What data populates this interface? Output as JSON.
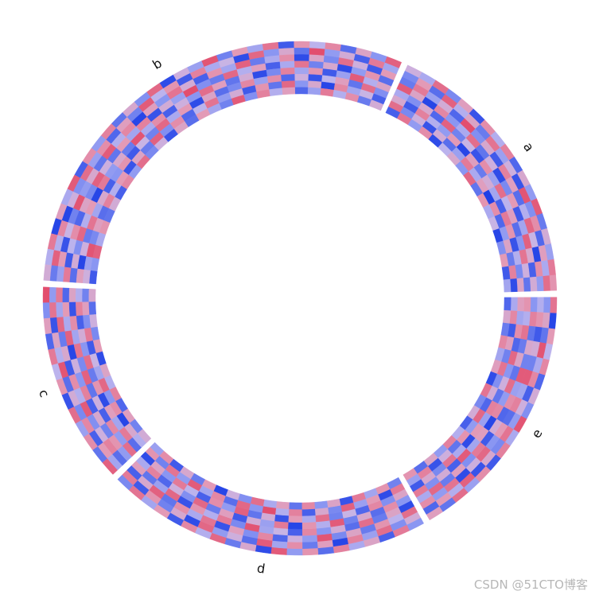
{
  "chart_data": {
    "type": "heatmap",
    "layout": "circular",
    "color_scale": [
      {
        "value": -2,
        "color": "#1f3fe6"
      },
      {
        "value": -0.7,
        "color": "#8a96f2"
      },
      {
        "value": 0,
        "color": "#c4b8ec"
      },
      {
        "value": 0.7,
        "color": "#e39ab6"
      },
      {
        "value": 2,
        "color": "#e24868"
      }
    ],
    "sectors": [
      {
        "name": "a",
        "values": [
          [
            0.8,
            1.4,
            -0.6,
            0.3,
            -1.2,
            0.5,
            -1.8,
            -0.4
          ],
          [
            1.2,
            -0.3,
            0.9,
            -1.5,
            0.2,
            -0.9,
            1.1,
            -1.6
          ],
          [
            -0.5,
            0.6,
            -1.9,
            0.4,
            1.3,
            -0.2,
            -1.1,
            0.7
          ],
          [
            0.3,
            -1.4,
            0.1,
            1.6,
            -0.7,
            -1.7,
            0.5,
            -0.8
          ],
          [
            -1.1,
            0.9,
            1.5,
            -0.4,
            -1.3,
            0.8,
            -0.6,
            -1.9
          ],
          [
            1.7,
            -0.8,
            -0.2,
            -1.6,
            0.6,
            1.2,
            -1.4,
            0.1
          ],
          [
            -0.6,
            1.8,
            -1.3,
            0.7,
            -0.1,
            -1.5,
            0.9,
            -0.3
          ],
          [
            0.4,
            -1.7,
            0.6,
            -0.9,
            1.4,
            -0.4,
            -2.0,
            0.8
          ],
          [
            -1.4,
            0.2,
            1.1,
            -1.8,
            -0.5,
            0.3,
            0.6,
            -1.2
          ],
          [
            1.1,
            -0.5,
            -1.6,
            0.2,
            0.9,
            -1.1,
            -0.3,
            1.5
          ],
          [
            -0.2,
            1.3,
            0.4,
            -1.2,
            -1.7,
            0.6,
            1.2,
            -0.7
          ],
          [
            0.9,
            -1.1,
            -0.8,
            1.4,
            0.1,
            -1.9,
            -0.5,
            0.4
          ],
          [
            -1.7,
            0.5,
            1.9,
            -0.3,
            -1.0,
            0.7,
            -1.3,
            -0.1
          ],
          [
            0.6,
            -0.2,
            -1.4,
            -0.7,
            1.6,
            -0.6,
            0.3,
            -1.8
          ],
          [
            -0.9,
            1.6,
            0.3,
            1.0,
            -1.4,
            -0.2,
            -1.7,
            0.9
          ],
          [
            1.4,
            -1.3,
            -0.5,
            -1.9,
            0.4,
            1.1,
            0.2,
            -0.6
          ],
          [
            -0.3,
            0.7,
            1.2,
            0.5,
            -0.8,
            -1.6,
            -0.9,
            1.3
          ],
          [
            0.2,
            -0.9,
            -1.1,
            1.7,
            -0.3,
            0.4,
            1.4,
            -1.5
          ]
        ]
      },
      {
        "name": "b",
        "values": [
          [
            1.6,
            -0.4,
            0.7,
            -1.3,
            0.5,
            -0.8,
            -1.5,
            0.3
          ],
          [
            -0.7,
            1.2,
            -1.6,
            0.8,
            -0.2,
            1.4,
            0.1,
            -1.1
          ],
          [
            0.5,
            -1.5,
            0.2,
            -0.6,
            1.7,
            -1.2,
            -0.4,
            0.9
          ],
          [
            -1.3,
            0.3,
            1.4,
            -1.8,
            -0.5,
            0.6,
            1.0,
            -0.2
          ],
          [
            1.0,
            -0.6,
            -0.9,
            0.4,
            -1.6,
            -0.1,
            -1.9,
            1.2
          ],
          [
            -0.1,
            1.9,
            0.5,
            -1.0,
            0.8,
            -1.7,
            0.4,
            -0.5
          ],
          [
            0.8,
            -1.2,
            -1.8,
            1.3,
            -0.4,
            0.2,
            -0.7,
            -1.4
          ],
          [
            -1.6,
            0.4,
            0.9,
            -0.3,
            1.1,
            -1.4,
            1.5,
            0.6
          ],
          [
            1.3,
            -0.7,
            -0.3,
            -1.5,
            -0.9,
            0.9,
            -1.2,
            -0.2
          ],
          [
            -0.4,
            1.5,
            -1.1,
            0.6,
            -1.8,
            -0.5,
            0.8,
            1.1
          ],
          [
            0.7,
            -1.8,
            1.6,
            -0.2,
            0.3,
            1.0,
            -1.6,
            -0.8
          ],
          [
            -1.0,
            0.1,
            -0.4,
            1.5,
            -1.2,
            -0.9,
            0.3,
            1.7
          ],
          [
            1.8,
            -0.3,
            0.8,
            -1.1,
            0.6,
            -1.3,
            -0.6,
            -1.0
          ],
          [
            -0.5,
            1.1,
            -1.5,
            -0.8,
            1.4,
            0.5,
            1.3,
            -0.4
          ],
          [
            0.2,
            -1.6,
            0.3,
            1.9,
            -0.7,
            -1.8,
            -0.1,
            0.7
          ],
          [
            -1.8,
            0.8,
            1.3,
            -0.5,
            0.2,
            0.7,
            -1.4,
            -1.3
          ],
          [
            1.5,
            -0.1,
            -0.7,
            0.3,
            -1.5,
            -0.3,
            0.9,
            0.5
          ],
          [
            -0.8,
            1.7,
            0.6,
            -1.7,
            0.9,
            1.5,
            -0.8,
            -1.7
          ],
          [
            0.4,
            -1.0,
            -1.9,
            1.1,
            -0.3,
            -1.0,
            1.6,
            0.2
          ],
          [
            -1.2,
            0.6,
            1.0,
            -0.4,
            1.8,
            0.1,
            -1.1,
            -0.9
          ],
          [
            1.1,
            -1.4,
            -0.2,
            0.7,
            -1.1,
            -1.6,
            0.5,
            1.4
          ],
          [
            -0.6,
            0.9,
            1.7,
            -1.2,
            0.4,
            0.8,
            -1.7,
            -0.6
          ],
          [
            0.9,
            -0.5,
            -1.2,
            0.2,
            -0.6,
            -0.7,
            0.7,
            1.0
          ],
          [
            -1.5,
            1.4,
            0.4,
            1.6,
            1.2,
            -1.5,
            -0.2,
            -1.5
          ],
          [
            1.7,
            -0.8,
            -0.6,
            -0.9,
            -1.9,
            0.4,
            1.1,
            0.3
          ],
          [
            -0.3,
            0.2,
            1.8,
            0.5,
            0.7,
            -0.4,
            -1.3,
            -1.2
          ],
          [
            0.6,
            -1.9,
            -1.0,
            -1.4,
            -0.2,
            1.3,
            0.6,
            0.8
          ],
          [
            -1.9,
            1.0,
            0.1,
            0.9,
            1.5,
            -1.1,
            -0.9,
            -0.3
          ],
          [
            1.2,
            -0.2,
            -1.7,
            -0.1,
            -0.8,
            0.2,
            1.8,
            1.6
          ],
          [
            -0.2,
            1.6,
            0.7,
            -1.6,
            0.3,
            -1.9,
            -0.5,
            -0.7
          ],
          [
            0.3,
            -1.1,
            -0.5,
            1.2,
            -1.3,
            0.6,
            0.2,
            -1.6
          ]
        ]
      },
      {
        "name": "c",
        "values": [
          [
            1.9,
            -0.6,
            1.2,
            -1.4,
            0.5,
            -0.2,
            -1.0,
            0.4
          ],
          [
            -0.8,
            1.3,
            -0.4,
            0.7,
            -1.7,
            1.1,
            0.6,
            -1.3
          ],
          [
            0.6,
            -1.7,
            1.5,
            -0.3,
            0.9,
            -1.5,
            -0.8,
            0.2
          ],
          [
            -1.4,
            0.5,
            -1.1,
            1.6,
            -0.4,
            0.3,
            1.2,
            -0.9
          ],
          [
            1.2,
            -0.2,
            0.4,
            -1.9,
            1.3,
            -0.7,
            -1.6,
            0.7
          ],
          [
            -0.1,
            1.8,
            -1.6,
            0.2,
            -0.9,
            1.4,
            0.1,
            -1.8
          ],
          [
            0.8,
            -1.3,
            0.9,
            -0.7,
            1.6,
            -1.1,
            -0.4,
            0.5
          ],
          [
            -1.7,
            0.3,
            -0.2,
            1.1,
            -1.2,
            0.8,
            1.5,
            -0.2
          ],
          [
            1.4,
            -0.9,
            1.7,
            -1.5,
            0.2,
            -1.8,
            -0.7,
            1.1
          ],
          [
            -0.5,
            1.0,
            -0.8,
            0.4,
            -1.5,
            0.6,
            0.9,
            -1.4
          ],
          [
            0.9,
            -1.5,
            0.2,
            -1.0,
            1.0,
            -0.4,
            -1.9,
            0.6
          ],
          [
            -1.2,
            0.7,
            1.1,
            0.8,
            -0.6,
            1.2,
            0.4,
            -1.0
          ],
          [
            1.6,
            -0.4,
            -1.3,
            -0.6,
            1.4,
            -1.3,
            -0.2,
            0.3
          ]
        ]
      },
      {
        "name": "d",
        "values": [
          [
            -0.9,
            1.2,
            -1.5,
            0.6,
            -0.3,
            -1.8,
            0.8,
            -0.5
          ],
          [
            1.3,
            -1.6,
            0.4,
            -1.2,
            1.1,
            0.5,
            -1.0,
            0.9
          ],
          [
            -0.4,
            0.8,
            1.6,
            -0.5,
            -1.4,
            -0.7,
            1.3,
            -1.6
          ],
          [
            0.7,
            -1.0,
            -1.2,
            1.5,
            0.2,
            1.2,
            -0.6,
            0.4
          ],
          [
            -1.6,
            0.4,
            0.9,
            -1.7,
            -0.8,
            -0.1,
            1.7,
            -1.1
          ],
          [
            1.0,
            -1.8,
            -0.3,
            0.8,
            1.5,
            -1.5,
            -0.4,
            0.7
          ],
          [
            -0.2,
            1.5,
            1.3,
            -0.2,
            -1.1,
            0.9,
            1.0,
            -1.9
          ],
          [
            1.5,
            -0.6,
            -1.7,
            1.2,
            0.6,
            -0.6,
            -1.3,
            0.2
          ],
          [
            -1.1,
            0.2,
            0.6,
            -0.9,
            -1.6,
            1.6,
            1.5,
            -0.8
          ],
          [
            0.4,
            -1.3,
            -0.8,
            1.8,
            0.3,
            -1.2,
            -0.7,
            1.4
          ],
          [
            -1.8,
            1.7,
            1.0,
            -0.4,
            -0.5,
            0.3,
            1.9,
            -0.3
          ],
          [
            1.7,
            -0.4,
            -1.4,
            0.1,
            1.2,
            -1.7,
            -0.2,
            0.6
          ],
          [
            -0.6,
            0.9,
            0.2,
            -1.5,
            -1.9,
            0.7,
            1.1,
            -1.2
          ],
          [
            0.8,
            -1.1,
            -0.6,
            1.0,
            0.8,
            -0.3,
            -1.5,
            1.0
          ],
          [
            -1.3,
            0.6,
            1.8,
            -0.7,
            -0.2,
            1.4,
            0.4,
            -0.7
          ],
          [
            1.1,
            -1.9,
            -0.9,
            0.3,
            1.7,
            -1.0,
            -0.9,
            0.5
          ],
          [
            -0.3,
            1.1,
            0.5,
            -1.3,
            -1.0,
            0.1,
            1.6,
            -1.7
          ],
          [
            0.5,
            -0.5,
            -1.1,
            1.4,
            0.4,
            -1.4,
            -0.5,
            1.2
          ],
          [
            -1.5,
            1.4,
            0.8,
            -1.1,
            -1.3,
            1.0,
            0.7,
            -0.4
          ],
          [
            1.2,
            -0.8,
            -0.1,
            0.5,
            0.9,
            -0.8,
            -1.8,
            0.8
          ],
          [
            -0.7,
            0.3,
            1.4,
            -1.8,
            -0.7,
            0.5,
            1.2,
            -1.0
          ]
        ]
      },
      {
        "name": "e",
        "values": [
          [
            0.6,
            -1.4,
            0.9,
            -0.3,
            1.2,
            -1.6,
            -0.5,
            0.8
          ],
          [
            -1.2,
            0.7,
            -0.6,
            1.5,
            -0.8,
            0.4,
            1.1,
            -1.3
          ],
          [
            1.4,
            -0.2,
            1.3,
            -1.1,
            0.3,
            -0.9,
            -1.7,
            0.5
          ],
          [
            -0.5,
            1.6,
            -1.8,
            0.6,
            -1.5,
            1.3,
            0.2,
            -0.6
          ],
          [
            0.9,
            -1.7,
            0.2,
            -0.8,
            1.7,
            -0.3,
            -1.2,
            1.1
          ],
          [
            -1.6,
            0.4,
            1.5,
            1.2,
            -0.4,
            -1.8,
            0.8,
            -0.2
          ],
          [
            1.1,
            -0.9,
            -0.7,
            -1.6,
            0.6,
            0.7,
            -0.6,
            -1.5
          ],
          [
            -0.3,
            1.3,
            0.7,
            0.3,
            -1.9,
            -0.5,
            1.5,
            0.3
          ],
          [
            1.8,
            -0.6,
            -1.3,
            -1.4,
            1.0,
            1.1,
            -1.4,
            -0.9
          ],
          [
            -0.8,
            0.2,
            1.1,
            0.9,
            -0.6,
            -1.2,
            0.3,
            1.3
          ],
          [
            0.3,
            -1.5,
            -0.4,
            -0.5,
            1.4,
            0.2,
            -0.8,
            -1.8
          ],
          [
            -1.4,
            1.0,
            1.7,
            1.7,
            -1.2,
            -0.7,
            1.3,
            0.6
          ],
          [
            1.0,
            -0.3,
            -1.0,
            -1.0,
            0.5,
            1.5,
            -1.0,
            -0.4
          ],
          [
            -0.1,
            1.8,
            0.3,
            0.4,
            -1.1,
            -1.4,
            0.6,
            1.0
          ],
          [
            0.7,
            -1.2,
            -1.6,
            -1.2,
            1.3,
            0.9,
            -1.6,
            -1.1
          ],
          [
            -1.9,
            0.5,
            0.8,
            1.1,
            -0.2,
            -0.4,
            1.0,
            0.4
          ],
          [
            1.3,
            -0.7,
            -0.2,
            -0.7,
            0.8,
            0.6,
            -0.3,
            -1.4
          ]
        ]
      }
    ]
  },
  "watermark": "CSDN @51CTO博客"
}
